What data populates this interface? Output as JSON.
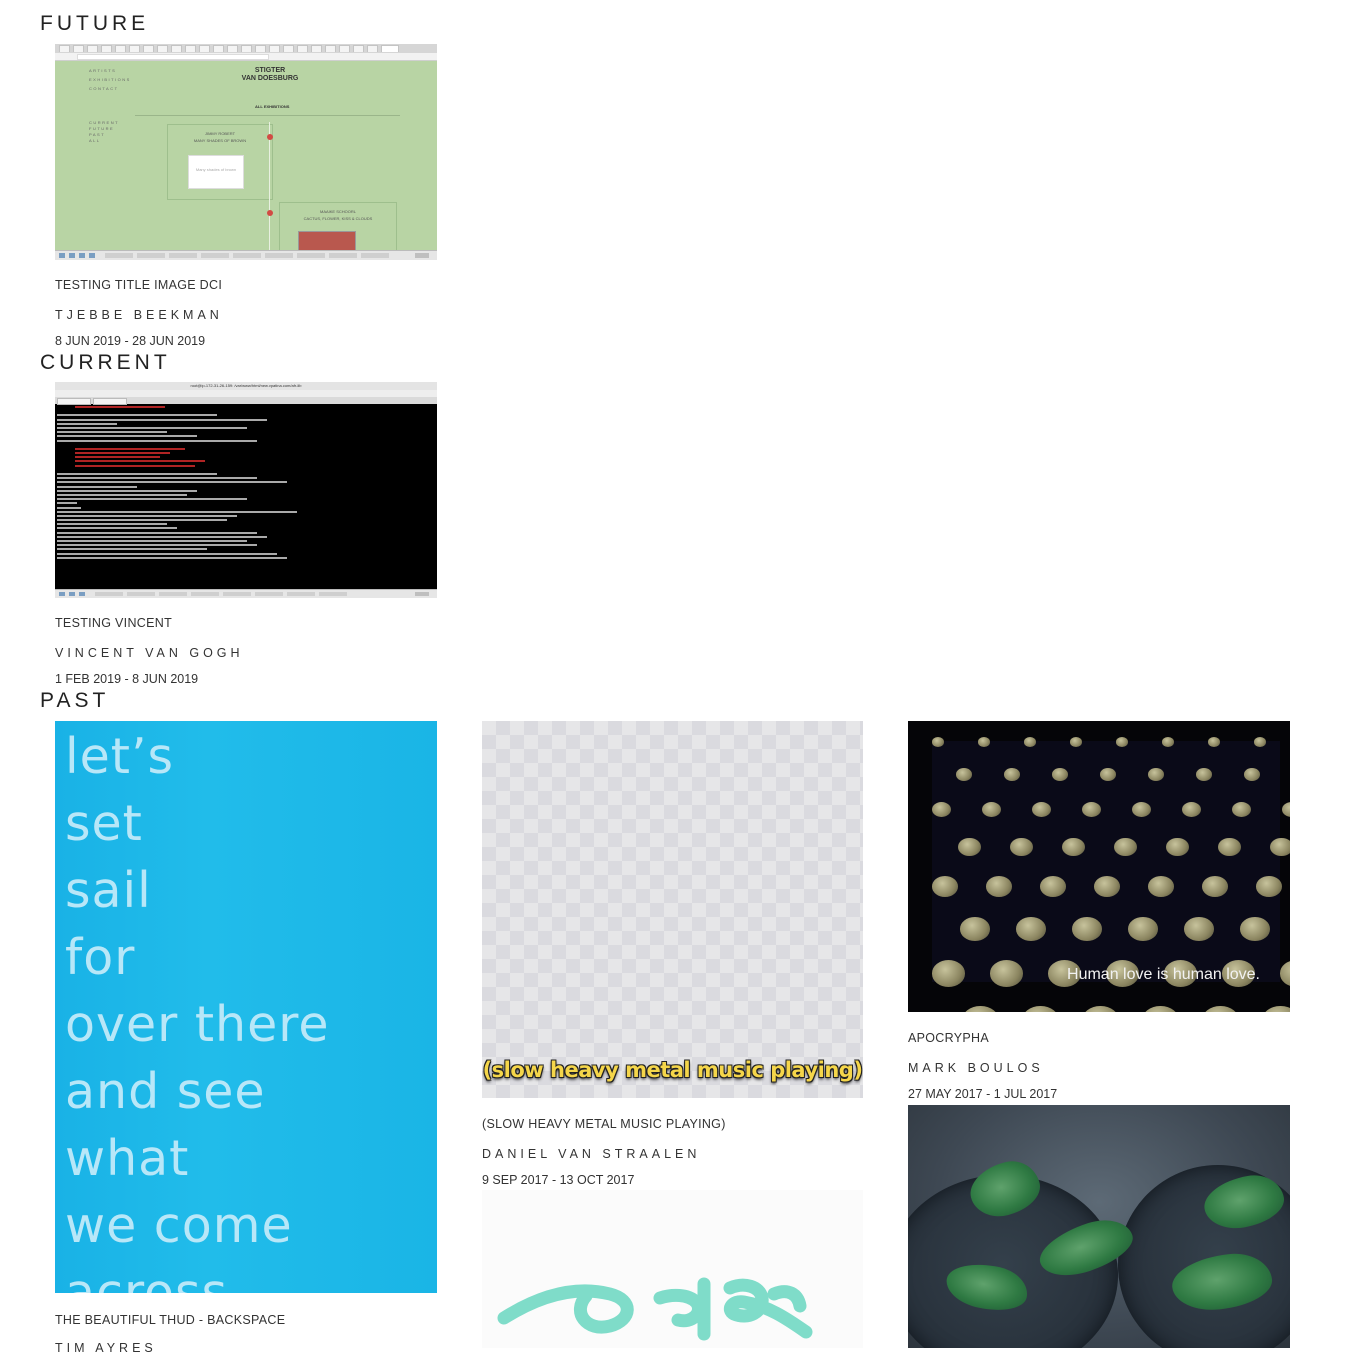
{
  "sections": {
    "future": "FUTURE",
    "current": "CURRENT",
    "past": "PAST"
  },
  "future": [
    {
      "title": "TESTING TITLE IMAGE DCI",
      "artist": "TJEBBE BEEKMAN",
      "dates": "8 JUN 2019 - 28 JUN 2019",
      "image": {
        "logo_line1": "STIGTER",
        "logo_line2": "VAN DOESBURG",
        "nav_artists": "ARTISTS",
        "nav_exhibitions": "EXHIBITIONS",
        "nav_contact": "CONTACT",
        "all_exhibitions": "ALL EXHIBITIONS",
        "filter_current": "CURRENT",
        "filter_future": "FUTURE",
        "filter_past": "PAST",
        "filter_all": "ALL",
        "card1_artist": "JIMMY ROBERT",
        "card1_title": "MANY SHADES OF BROWN",
        "card1_image_text": "Many shades of brown",
        "card2_artist": "MAAIKE SCHOORL",
        "card2_title": "CACTUS, FLOWER, KISS & CLOUDS"
      }
    }
  ],
  "current": [
    {
      "title": "TESTING VINCENT",
      "artist": "VINCENT VAN GOGH",
      "dates": "1 FEB 2019 - 8 JUN 2019",
      "image": {
        "window_title": "root@ip-172-31-26-159: /var/www/html/new.vpatina.com/afr-lib"
      }
    }
  ],
  "past": [
    {
      "title": "THE BEAUTIFUL THUD - BACKSPACE",
      "artist": "TIM AYRES",
      "image_text": "let’s\nset\nsail\nfor\nover there\nand see\nwhat\nwe come\nacross"
    },
    {
      "title": "(SLOW HEAVY METAL MUSIC PLAYING)",
      "artist": "DANIEL VAN STRAALEN",
      "dates": "9 SEP 2017 - 13 OCT 2017",
      "image_text": "(slow heavy metal music playing)"
    },
    {
      "title": "APOCRYPHA",
      "artist": "MARK BOULOS",
      "dates": "27 MAY 2017 - 1 JUL 2017",
      "image_text": "Human love is human love."
    }
  ],
  "colors": {
    "browser_bg": "#b8d4a4",
    "terminal_bg": "#000000",
    "sail_blue": "#1ab5e6",
    "subtitle_yellow": "#f5d64a",
    "handwriting_teal": "#7fdcc9"
  }
}
